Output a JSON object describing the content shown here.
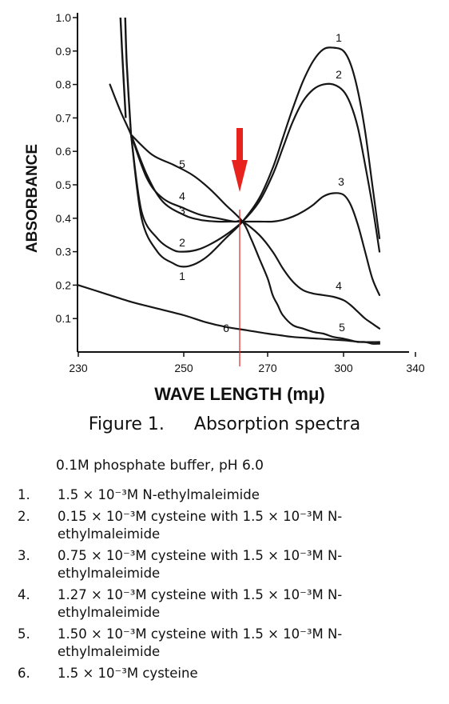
{
  "chart_data": {
    "type": "line",
    "title": "Absorption spectra",
    "figure_label": "Figure 1.",
    "xlabel": "WAVE LENGTH (mμ)",
    "ylabel": "ABSORBANCE",
    "xticks": [
      "230",
      "250",
      "270",
      "300",
      "340"
    ],
    "yticks": [
      "0.1",
      "0.2",
      "0.3",
      "0.4",
      "0.5",
      "0.6",
      "0.7",
      "0.8",
      "0.9",
      "1.0"
    ],
    "ylim": [
      0,
      1.0
    ],
    "grid": false,
    "annotation": {
      "type": "arrow",
      "color": "#e8231e",
      "x": "≈264 mμ",
      "y": 0.39
    },
    "series": [
      {
        "name": "1",
        "x": [
          240,
          242,
          245,
          248,
          250,
          253,
          256,
          260,
          264,
          268,
          272,
          276,
          280,
          284,
          288,
          292,
          296,
          300,
          304,
          308,
          312,
          316,
          320
        ],
        "y": [
          0.65,
          0.4,
          0.3,
          0.265,
          0.255,
          0.265,
          0.29,
          0.34,
          0.39,
          0.46,
          0.55,
          0.64,
          0.73,
          0.81,
          0.87,
          0.905,
          0.91,
          0.9,
          0.86,
          0.78,
          0.66,
          0.5,
          0.34
        ]
      },
      {
        "name": "2",
        "x": [
          240,
          242,
          245,
          248,
          250,
          253,
          256,
          260,
          264,
          268,
          272,
          276,
          280,
          284,
          288,
          292,
          296,
          300,
          304,
          308,
          312,
          316,
          320
        ],
        "y": [
          0.65,
          0.42,
          0.34,
          0.305,
          0.3,
          0.305,
          0.32,
          0.35,
          0.39,
          0.45,
          0.53,
          0.61,
          0.69,
          0.75,
          0.785,
          0.8,
          0.8,
          0.78,
          0.74,
          0.67,
          0.56,
          0.44,
          0.3
        ]
      },
      {
        "name": "3",
        "x": [
          236,
          238,
          240,
          243,
          246,
          250,
          254,
          258,
          262,
          264,
          268,
          272,
          276,
          280,
          284,
          288,
          292,
          296,
          300,
          304,
          308,
          312,
          316,
          320
        ],
        "y": [
          0.8,
          0.72,
          0.65,
          0.53,
          0.45,
          0.41,
          0.395,
          0.39,
          0.39,
          0.39,
          0.39,
          0.39,
          0.395,
          0.405,
          0.42,
          0.44,
          0.465,
          0.475,
          0.47,
          0.44,
          0.38,
          0.3,
          0.22,
          0.17
        ]
      },
      {
        "name": "4",
        "x": [
          240,
          243,
          246,
          250,
          254,
          258,
          262,
          264,
          268,
          272,
          276,
          280,
          284,
          288,
          292,
          296,
          300,
          304,
          308,
          312,
          316,
          320
        ],
        "y": [
          0.65,
          0.52,
          0.46,
          0.43,
          0.41,
          0.4,
          0.39,
          0.39,
          0.35,
          0.3,
          0.25,
          0.21,
          0.185,
          0.175,
          0.17,
          0.165,
          0.155,
          0.14,
          0.12,
          0.1,
          0.085,
          0.07
        ]
      },
      {
        "name": "5",
        "x": [
          240,
          244,
          248,
          252,
          256,
          260,
          264,
          266,
          268,
          270,
          272,
          274,
          276,
          280,
          284,
          288,
          292,
          296,
          300,
          304,
          308,
          312,
          316,
          320
        ],
        "y": [
          0.65,
          0.59,
          0.56,
          0.53,
          0.49,
          0.44,
          0.39,
          0.34,
          0.28,
          0.22,
          0.17,
          0.14,
          0.11,
          0.08,
          0.07,
          0.06,
          0.055,
          0.045,
          0.04,
          0.035,
          0.03,
          0.03,
          0.025,
          0.025
        ]
      },
      {
        "name": "6",
        "x": [
          230,
          235,
          240,
          245,
          250,
          255,
          260,
          265,
          270,
          275,
          280,
          290,
          300,
          310,
          320
        ],
        "y": [
          0.2,
          0.175,
          0.15,
          0.13,
          0.11,
          0.09,
          0.075,
          0.065,
          0.055,
          0.05,
          0.045,
          0.04,
          0.035,
          0.03,
          0.03
        ]
      }
    ]
  },
  "caption": {
    "figure_label": "Figure 1.",
    "title": "Absorption spectra"
  },
  "buffer_text": "0.1M phosphate buffer, pH 6.0",
  "legend_items": [
    {
      "num": "1.",
      "text": "1.5 × 10⁻³M N-ethylmaleimide"
    },
    {
      "num": "2.",
      "text": "0.15 × 10⁻³M cysteine with 1.5 × 10⁻³M N-ethylmaleimide"
    },
    {
      "num": "3.",
      "text": "0.75 × 10⁻³M cysteine with 1.5 × 10⁻³M N-ethylmaleimide"
    },
    {
      "num": "4.",
      "text": "1.27 × 10⁻³M cysteine with 1.5 × 10⁻³M N-ethylmaleimide"
    },
    {
      "num": "5.",
      "text": "1.50 × 10⁻³M cysteine with 1.5 × 10⁻³M N-ethylmaleimide"
    },
    {
      "num": "6.",
      "text": "1.5 × 10⁻³M cysteine"
    }
  ]
}
